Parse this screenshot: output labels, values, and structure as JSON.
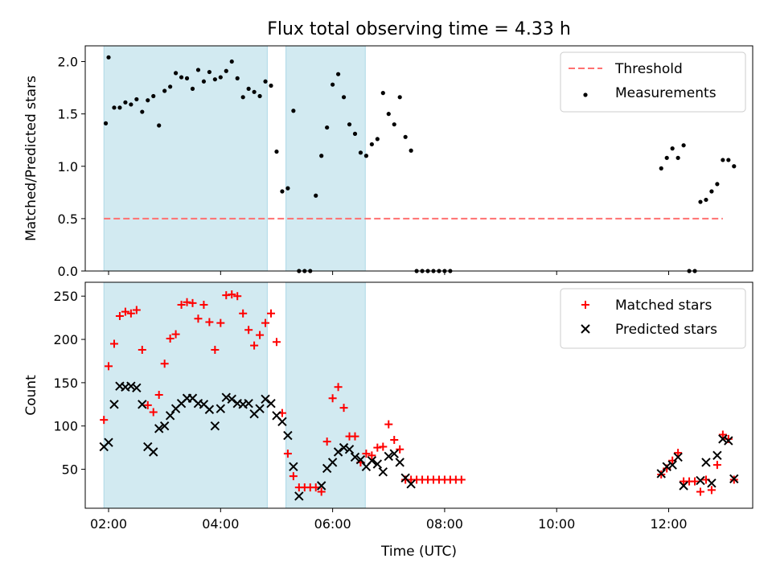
{
  "figure": {
    "title": "Flux total observing time = 4.33 h",
    "xlabel": "Time (UTC)"
  },
  "chart_data": [
    {
      "type": "scatter",
      "panel": "top",
      "ylabel": "Matched/Predicted stars",
      "x_axis": {
        "type": "time",
        "range": [
          "01:35",
          "13:30"
        ],
        "ticks": [
          "02:00",
          "04:00",
          "06:00",
          "08:00",
          "10:00",
          "12:00"
        ]
      },
      "ylim": [
        0,
        2.15
      ],
      "yticks": [
        "0.0",
        "0.5",
        "1.0",
        "1.5",
        "2.0"
      ],
      "legend": {
        "position": "top-right"
      },
      "shaded_spans": [
        [
          "01:55",
          "04:50"
        ],
        [
          "05:10",
          "06:35"
        ]
      ],
      "shade_color": "#add8e6",
      "threshold": {
        "name": "Threshold",
        "y": 0.5,
        "x_start": "01:55",
        "x_end": "12:58",
        "color": "#ff7070",
        "style": "dashed"
      },
      "series": [
        {
          "name": "Measurements",
          "marker": "dot",
          "color": "#000000",
          "points": [
            [
              "01:57",
              1.41
            ],
            [
              "02:00",
              2.04
            ],
            [
              "02:06",
              1.56
            ],
            [
              "02:12",
              1.56
            ],
            [
              "02:18",
              1.61
            ],
            [
              "02:24",
              1.59
            ],
            [
              "02:30",
              1.64
            ],
            [
              "02:36",
              1.52
            ],
            [
              "02:42",
              1.63
            ],
            [
              "02:48",
              1.67
            ],
            [
              "02:54",
              1.39
            ],
            [
              "03:00",
              1.72
            ],
            [
              "03:06",
              1.76
            ],
            [
              "03:12",
              1.89
            ],
            [
              "03:18",
              1.85
            ],
            [
              "03:24",
              1.84
            ],
            [
              "03:30",
              1.74
            ],
            [
              "03:36",
              1.92
            ],
            [
              "03:42",
              1.81
            ],
            [
              "03:48",
              1.9
            ],
            [
              "03:54",
              1.83
            ],
            [
              "04:00",
              1.85
            ],
            [
              "04:06",
              1.91
            ],
            [
              "04:12",
              2.0
            ],
            [
              "04:18",
              1.84
            ],
            [
              "04:24",
              1.66
            ],
            [
              "04:30",
              1.74
            ],
            [
              "04:36",
              1.71
            ],
            [
              "04:42",
              1.67
            ],
            [
              "04:48",
              1.81
            ],
            [
              "04:54",
              1.77
            ],
            [
              "05:00",
              1.14
            ],
            [
              "05:06",
              0.76
            ],
            [
              "05:12",
              0.79
            ],
            [
              "05:18",
              1.53
            ],
            [
              "05:24",
              0.0
            ],
            [
              "05:30",
              0.0
            ],
            [
              "05:36",
              0.0
            ],
            [
              "05:42",
              0.72
            ],
            [
              "05:48",
              1.1
            ],
            [
              "05:54",
              1.37
            ],
            [
              "06:00",
              1.78
            ],
            [
              "06:06",
              1.88
            ],
            [
              "06:12",
              1.66
            ],
            [
              "06:18",
              1.4
            ],
            [
              "06:24",
              1.31
            ],
            [
              "06:30",
              1.13
            ],
            [
              "06:36",
              1.1
            ],
            [
              "06:42",
              1.21
            ],
            [
              "06:48",
              1.26
            ],
            [
              "06:54",
              1.7
            ],
            [
              "07:00",
              1.5
            ],
            [
              "07:06",
              1.4
            ],
            [
              "07:12",
              1.66
            ],
            [
              "07:18",
              1.28
            ],
            [
              "07:24",
              1.15
            ],
            [
              "07:30",
              0.0
            ],
            [
              "07:36",
              0.0
            ],
            [
              "07:42",
              0.0
            ],
            [
              "07:48",
              0.0
            ],
            [
              "07:54",
              0.0
            ],
            [
              "08:00",
              0.0
            ],
            [
              "08:06",
              0.0
            ],
            [
              "11:52",
              0.98
            ],
            [
              "11:58",
              1.08
            ],
            [
              "12:04",
              1.17
            ],
            [
              "12:10",
              1.08
            ],
            [
              "12:16",
              1.2
            ],
            [
              "12:22",
              0.0
            ],
            [
              "12:28",
              0.0
            ],
            [
              "12:34",
              0.66
            ],
            [
              "12:40",
              0.68
            ],
            [
              "12:46",
              0.76
            ],
            [
              "12:52",
              0.83
            ],
            [
              "12:58",
              1.06
            ],
            [
              "13:04",
              1.06
            ],
            [
              "13:10",
              1.0
            ]
          ]
        }
      ]
    },
    {
      "type": "scatter",
      "panel": "bottom",
      "ylabel": "Count",
      "x_axis": {
        "type": "time",
        "range": [
          "01:35",
          "13:30"
        ],
        "ticks": [
          "02:00",
          "04:00",
          "06:00",
          "08:00",
          "10:00",
          "12:00"
        ]
      },
      "ylim": [
        5,
        266
      ],
      "yticks": [
        "50",
        "100",
        "150",
        "200",
        "250"
      ],
      "legend": {
        "position": "top-right"
      },
      "shaded_spans": [
        [
          "01:55",
          "04:50"
        ],
        [
          "05:10",
          "06:35"
        ]
      ],
      "shade_color": "#add8e6",
      "series": [
        {
          "name": "Matched stars",
          "marker": "plus",
          "color": "#ff0000",
          "points": [
            [
              "01:55",
              107
            ],
            [
              "02:00",
              169
            ],
            [
              "02:06",
              195
            ],
            [
              "02:12",
              227
            ],
            [
              "02:18",
              232
            ],
            [
              "02:24",
              230
            ],
            [
              "02:30",
              234
            ],
            [
              "02:36",
              188
            ],
            [
              "02:42",
              124
            ],
            [
              "02:48",
              116
            ],
            [
              "02:54",
              136
            ],
            [
              "03:00",
              172
            ],
            [
              "03:06",
              201
            ],
            [
              "03:12",
              206
            ],
            [
              "03:18",
              240
            ],
            [
              "03:24",
              243
            ],
            [
              "03:30",
              242
            ],
            [
              "03:36",
              224
            ],
            [
              "03:42",
              240
            ],
            [
              "03:48",
              220
            ],
            [
              "03:54",
              188
            ],
            [
              "04:00",
              219
            ],
            [
              "04:06",
              251
            ],
            [
              "04:12",
              252
            ],
            [
              "04:18",
              250
            ],
            [
              "04:24",
              230
            ],
            [
              "04:30",
              211
            ],
            [
              "04:36",
              193
            ],
            [
              "04:42",
              205
            ],
            [
              "04:48",
              219
            ],
            [
              "04:54",
              230
            ],
            [
              "05:00",
              197
            ],
            [
              "05:06",
              115
            ],
            [
              "05:12",
              68
            ],
            [
              "05:18",
              42
            ],
            [
              "05:24",
              29
            ],
            [
              "05:30",
              29
            ],
            [
              "05:36",
              29
            ],
            [
              "05:42",
              29
            ],
            [
              "05:48",
              24
            ],
            [
              "05:54",
              82
            ],
            [
              "06:00",
              132
            ],
            [
              "06:06",
              145
            ],
            [
              "06:12",
              121
            ],
            [
              "06:18",
              88
            ],
            [
              "06:24",
              88
            ],
            [
              "06:30",
              58
            ],
            [
              "06:36",
              68
            ],
            [
              "06:42",
              66
            ],
            [
              "06:48",
              75
            ],
            [
              "06:54",
              76
            ],
            [
              "07:00",
              102
            ],
            [
              "07:06",
              84
            ],
            [
              "07:12",
              73
            ],
            [
              "07:18",
              38
            ],
            [
              "07:24",
              38
            ],
            [
              "07:30",
              38
            ],
            [
              "07:36",
              38
            ],
            [
              "07:42",
              38
            ],
            [
              "07:48",
              38
            ],
            [
              "07:54",
              38
            ],
            [
              "08:00",
              38
            ],
            [
              "08:06",
              38
            ],
            [
              "08:12",
              38
            ],
            [
              "08:18",
              38
            ],
            [
              "11:52",
              44
            ],
            [
              "11:58",
              51
            ],
            [
              "12:04",
              60
            ],
            [
              "12:10",
              69
            ],
            [
              "12:16",
              36
            ],
            [
              "12:22",
              36
            ],
            [
              "12:28",
              36
            ],
            [
              "12:34",
              24
            ],
            [
              "12:40",
              38
            ],
            [
              "12:46",
              26
            ],
            [
              "12:52",
              55
            ],
            [
              "12:58",
              90
            ],
            [
              "13:04",
              85
            ],
            [
              "13:10",
              38
            ]
          ]
        },
        {
          "name": "Predicted stars",
          "marker": "x",
          "color": "#000000",
          "points": [
            [
              "01:55",
              76
            ],
            [
              "02:00",
              81
            ],
            [
              "02:06",
              125
            ],
            [
              "02:12",
              146
            ],
            [
              "02:18",
              145
            ],
            [
              "02:24",
              146
            ],
            [
              "02:30",
              144
            ],
            [
              "02:36",
              125
            ],
            [
              "02:42",
              76
            ],
            [
              "02:48",
              70
            ],
            [
              "02:54",
              97
            ],
            [
              "03:00",
              100
            ],
            [
              "03:06",
              112
            ],
            [
              "03:12",
              120
            ],
            [
              "03:18",
              126
            ],
            [
              "03:24",
              132
            ],
            [
              "03:30",
              132
            ],
            [
              "03:36",
              126
            ],
            [
              "03:42",
              125
            ],
            [
              "03:48",
              119
            ],
            [
              "03:54",
              100
            ],
            [
              "04:00",
              120
            ],
            [
              "04:06",
              133
            ],
            [
              "04:12",
              131
            ],
            [
              "04:18",
              126
            ],
            [
              "04:24",
              125
            ],
            [
              "04:30",
              126
            ],
            [
              "04:36",
              114
            ],
            [
              "04:42",
              120
            ],
            [
              "04:48",
              131
            ],
            [
              "04:54",
              126
            ],
            [
              "05:00",
              112
            ],
            [
              "05:06",
              105
            ],
            [
              "05:12",
              89
            ],
            [
              "05:18",
              53
            ],
            [
              "05:24",
              19
            ],
            [
              "05:48",
              31
            ],
            [
              "05:54",
              51
            ],
            [
              "06:00",
              58
            ],
            [
              "06:06",
              70
            ],
            [
              "06:12",
              75
            ],
            [
              "06:18",
              73
            ],
            [
              "06:24",
              64
            ],
            [
              "06:30",
              61
            ],
            [
              "06:36",
              53
            ],
            [
              "06:42",
              60
            ],
            [
              "06:48",
              56
            ],
            [
              "06:54",
              47
            ],
            [
              "07:00",
              65
            ],
            [
              "07:06",
              68
            ],
            [
              "07:12",
              58
            ],
            [
              "07:18",
              40
            ],
            [
              "07:24",
              33
            ],
            [
              "11:52",
              45
            ],
            [
              "11:58",
              53
            ],
            [
              "12:04",
              55
            ],
            [
              "12:10",
              64
            ],
            [
              "12:16",
              31
            ],
            [
              "12:34",
              37
            ],
            [
              "12:40",
              58
            ],
            [
              "12:46",
              34
            ],
            [
              "12:52",
              66
            ],
            [
              "12:58",
              85
            ],
            [
              "13:04",
              83
            ],
            [
              "13:10",
              39
            ]
          ]
        }
      ]
    }
  ]
}
